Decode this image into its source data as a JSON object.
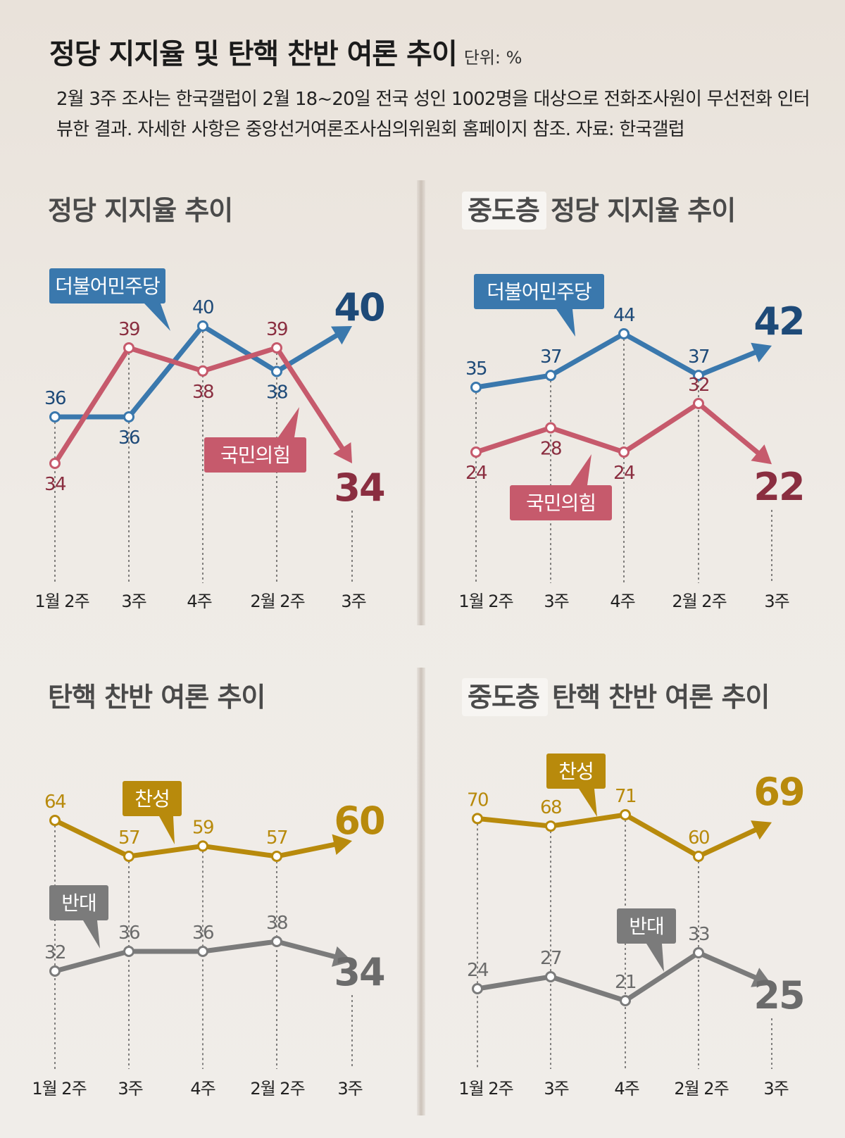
{
  "header": {
    "title": "정당 지지율 및 탄핵 찬반 여론 추이",
    "unit": "단위: %",
    "subtitle": "2월 3주 조사는 한국갤럽이 2월 18~20일 전국 성인 1002명을 대상으로 전화조사원이 무선전화 인터뷰한 결과. 자세한 사항은 중앙선거여론조사심의위원회 홈페이지 참조. 자료: 한국갤럽"
  },
  "colors": {
    "democratic": "#3a78ad",
    "ppp_line": "#c65a6c",
    "ppp_dark": "#8a2e40",
    "democratic_dark": "#1e4a78",
    "favor": "#b88a0c",
    "oppose": "#7b7b7b",
    "oppose_dark": "#6b6b6b",
    "highlight_box": "#f7f5f2"
  },
  "chart_data": [
    {
      "type": "line",
      "title": "정당 지지율 추이",
      "title_highlight": "",
      "categories": [
        "1월 2주",
        "3주",
        "4주",
        "2월 2주",
        "3주"
      ],
      "series": [
        {
          "name": "더불어민주당",
          "values": [
            36,
            36,
            40,
            38,
            40
          ]
        },
        {
          "name": "국민의힘",
          "values": [
            34,
            39,
            38,
            39,
            34
          ]
        }
      ]
    },
    {
      "type": "line",
      "title": "정당 지지율 추이",
      "title_highlight": "중도층",
      "categories": [
        "1월 2주",
        "3주",
        "4주",
        "2월 2주",
        "3주"
      ],
      "series": [
        {
          "name": "더불어민주당",
          "values": [
            35,
            37,
            44,
            37,
            42
          ]
        },
        {
          "name": "국민의힘",
          "values": [
            24,
            28,
            24,
            32,
            22
          ]
        }
      ]
    },
    {
      "type": "line",
      "title": "탄핵 찬반 여론 추이",
      "title_highlight": "",
      "categories": [
        "1월 2주",
        "3주",
        "4주",
        "2월 2주",
        "3주"
      ],
      "series": [
        {
          "name": "찬성",
          "values": [
            64,
            57,
            59,
            57,
            60
          ]
        },
        {
          "name": "반대",
          "values": [
            32,
            36,
            36,
            38,
            34
          ]
        }
      ]
    },
    {
      "type": "line",
      "title": "탄핵 찬반 여론 추이",
      "title_highlight": "중도층",
      "categories": [
        "1월 2주",
        "3주",
        "4주",
        "2월 2주",
        "3주"
      ],
      "series": [
        {
          "name": "찬성",
          "values": [
            70,
            68,
            71,
            60,
            69
          ]
        },
        {
          "name": "반대",
          "values": [
            24,
            27,
            21,
            33,
            25
          ]
        }
      ]
    }
  ]
}
